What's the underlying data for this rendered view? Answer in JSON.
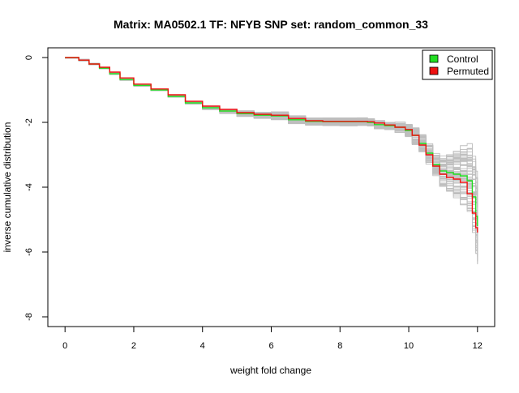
{
  "chart_data": {
    "type": "line",
    "title": "Matrix: MA0502.1 TF: NFYB SNP set: random_common_33",
    "xlabel": "weight fold change",
    "ylabel": "inverse cumulative distribution",
    "xlim": [
      -0.5,
      12.5
    ],
    "ylim": [
      -8.3,
      0.3
    ],
    "x_ticks": [
      0,
      2,
      4,
      6,
      8,
      10,
      12
    ],
    "y_ticks": [
      0,
      -2,
      -4,
      -6,
      -8
    ],
    "grid": false,
    "legend": {
      "placement": "top-right",
      "entries": [
        {
          "label": "Control",
          "color": "#22dd22"
        },
        {
          "label": "Permuted",
          "color": "#ee1111"
        }
      ]
    },
    "colors": {
      "background_curves": "#bebebe",
      "control": "#22dd22",
      "permuted": "#ee1111"
    },
    "background_curve_count": 60,
    "series": [
      {
        "name": "Control",
        "color": "#22dd22",
        "x": [
          0,
          0.2,
          0.4,
          0.7,
          1.0,
          1.3,
          1.6,
          2.0,
          2.5,
          3.0,
          3.5,
          4.0,
          4.5,
          5.0,
          5.5,
          6.0,
          6.5,
          7.0,
          7.5,
          8.0,
          8.5,
          8.8,
          9.0,
          9.3,
          9.6,
          9.9,
          10.1,
          10.3,
          10.5,
          10.7,
          10.9,
          11.1,
          11.3,
          11.5,
          11.7,
          11.85,
          11.95,
          12.0
        ],
        "values": [
          0,
          0,
          -0.08,
          -0.2,
          -0.33,
          -0.5,
          -0.68,
          -0.86,
          -1.0,
          -1.2,
          -1.4,
          -1.55,
          -1.65,
          -1.73,
          -1.78,
          -1.8,
          -1.92,
          -1.97,
          -1.98,
          -1.98,
          -1.98,
          -2.0,
          -2.07,
          -2.1,
          -2.15,
          -2.25,
          -2.4,
          -2.65,
          -2.95,
          -3.3,
          -3.5,
          -3.55,
          -3.6,
          -3.65,
          -3.8,
          -4.3,
          -4.9,
          -5.2
        ]
      },
      {
        "name": "Permuted",
        "color": "#ee1111",
        "x": [
          0,
          0.2,
          0.4,
          0.7,
          1.0,
          1.3,
          1.6,
          2.0,
          2.5,
          3.0,
          3.5,
          4.0,
          4.5,
          5.0,
          5.5,
          6.0,
          6.5,
          7.0,
          7.5,
          8.0,
          8.5,
          8.8,
          9.0,
          9.3,
          9.6,
          9.9,
          10.1,
          10.3,
          10.5,
          10.7,
          10.9,
          11.1,
          11.3,
          11.5,
          11.7,
          11.85,
          11.95,
          12.0
        ],
        "values": [
          0,
          0,
          -0.08,
          -0.2,
          -0.3,
          -0.45,
          -0.63,
          -0.82,
          -0.97,
          -1.15,
          -1.35,
          -1.5,
          -1.6,
          -1.7,
          -1.75,
          -1.78,
          -1.88,
          -1.95,
          -1.97,
          -1.97,
          -1.97,
          -1.98,
          -2.02,
          -2.08,
          -2.15,
          -2.22,
          -2.4,
          -2.7,
          -3.0,
          -3.35,
          -3.6,
          -3.7,
          -3.75,
          -3.85,
          -4.2,
          -4.8,
          -5.25,
          -5.4
        ]
      }
    ]
  }
}
